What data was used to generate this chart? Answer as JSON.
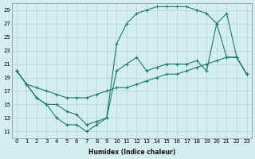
{
  "xlabel": "Humidex (Indice chaleur)",
  "bg_color": "#d4eeed",
  "grid_color": "#b8d8d8",
  "line_color": "#1a7a6e",
  "xlim": [
    -0.5,
    23.5
  ],
  "ylim": [
    10,
    30
  ],
  "xticks": [
    0,
    1,
    2,
    3,
    4,
    5,
    6,
    7,
    8,
    9,
    10,
    11,
    12,
    13,
    14,
    15,
    16,
    17,
    18,
    19,
    20,
    21,
    22,
    23
  ],
  "yticks": [
    11,
    13,
    15,
    17,
    19,
    21,
    23,
    25,
    27,
    29
  ],
  "line1_x": [
    0,
    1,
    2,
    3,
    4,
    5,
    6,
    7,
    8,
    9,
    10,
    11,
    12,
    13,
    14,
    15,
    16,
    17,
    18,
    19,
    20,
    21,
    22,
    23
  ],
  "line1_y": [
    20,
    18,
    16,
    15,
    13,
    12,
    12,
    11,
    12,
    13,
    20,
    21,
    22,
    20,
    20.5,
    21,
    21,
    21,
    21.5,
    20,
    27,
    22,
    22,
    19.5
  ],
  "line2_x": [
    0,
    1,
    2,
    3,
    4,
    5,
    6,
    7,
    8,
    9,
    10,
    11,
    12,
    13,
    14,
    15,
    16,
    17,
    18,
    19,
    20,
    21,
    22,
    23
  ],
  "line2_y": [
    20,
    18,
    16,
    15,
    15,
    14,
    13.5,
    12,
    12.5,
    13,
    24,
    27,
    28.5,
    29,
    29.5,
    29.5,
    29.5,
    29.5,
    29,
    28.5,
    27,
    28.5,
    22,
    19.5
  ],
  "line3_x": [
    0,
    1,
    2,
    3,
    4,
    5,
    6,
    7,
    8,
    9,
    10,
    11,
    12,
    13,
    14,
    15,
    16,
    17,
    18,
    19,
    20,
    21,
    22,
    23
  ],
  "line3_y": [
    20,
    18,
    17.5,
    17,
    16.5,
    16,
    16,
    16,
    16.5,
    17,
    17.5,
    17.5,
    18,
    18.5,
    19,
    19.5,
    19.5,
    20,
    20.5,
    21,
    21.5,
    22,
    22,
    19.5
  ]
}
